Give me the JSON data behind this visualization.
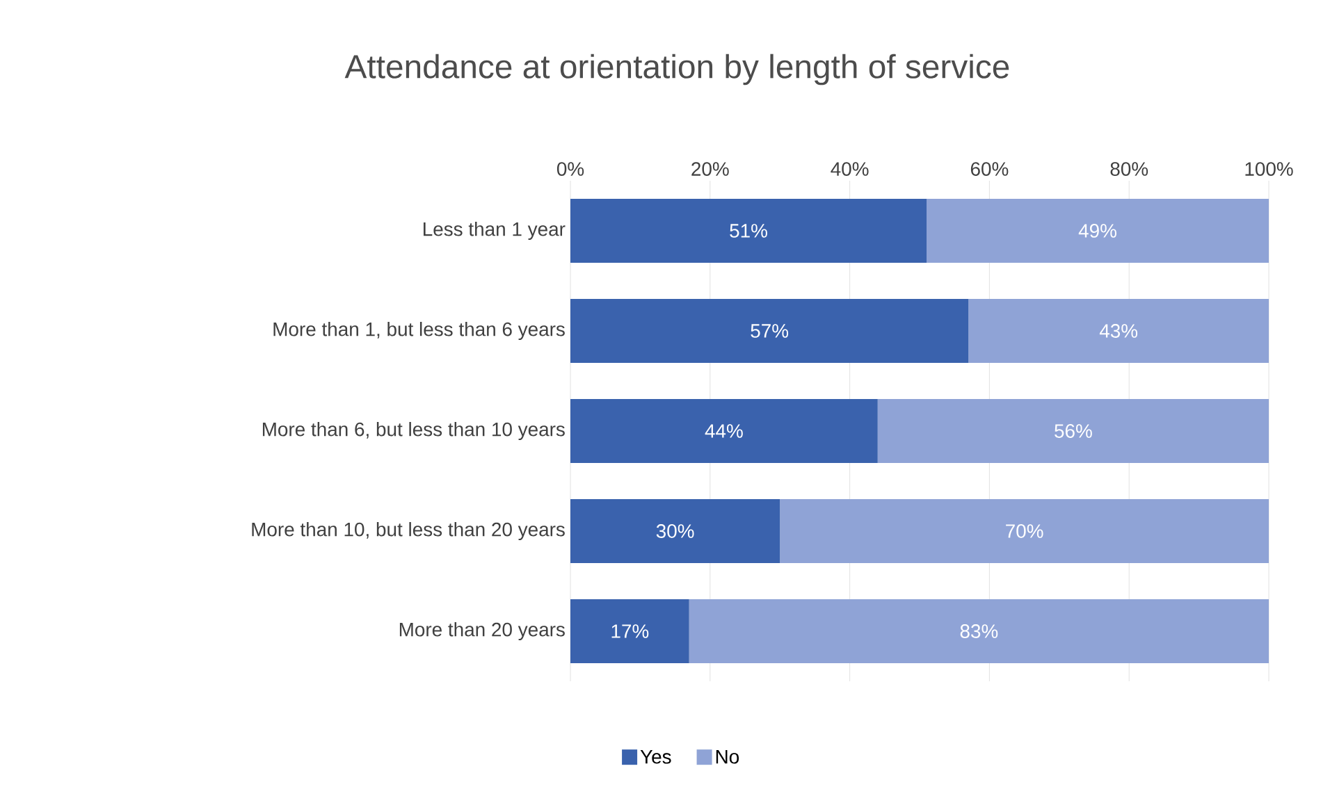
{
  "chart_data": {
    "type": "bar",
    "orientation": "horizontal",
    "stacked": true,
    "title": "Attendance at orientation by length of service",
    "categories": [
      "Less than 1 year",
      "More than 1, but less than 6 years",
      "More than 6, but less than 10 years",
      "More than 10, but less than 20 years",
      "More than 20 years"
    ],
    "series": [
      {
        "name": "Yes",
        "color": "#3a62ad",
        "values": [
          51,
          57,
          44,
          30,
          17
        ],
        "value_labels": [
          "51%",
          "57%",
          "44%",
          "30%",
          "17%"
        ]
      },
      {
        "name": "No",
        "color": "#8fa3d6",
        "values": [
          49,
          43,
          56,
          70,
          83
        ],
        "value_labels": [
          "49%",
          "43%",
          "56%",
          "70%",
          "83%"
        ]
      }
    ],
    "xlim": [
      0,
      100
    ],
    "xticks": [
      {
        "value": 0,
        "label": "0%"
      },
      {
        "value": 20,
        "label": "20%"
      },
      {
        "value": 40,
        "label": "40%"
      },
      {
        "value": 60,
        "label": "60%"
      },
      {
        "value": 80,
        "label": "80%"
      },
      {
        "value": 100,
        "label": "100%"
      }
    ],
    "grid": "x",
    "legend": "bottom"
  }
}
